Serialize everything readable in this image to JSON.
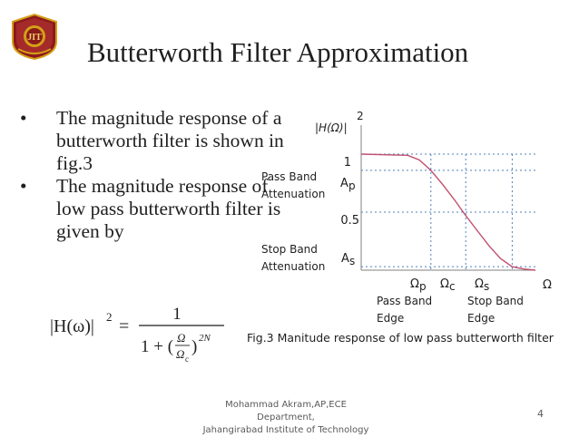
{
  "slide": {
    "title": "Butterworth Filter Approximation",
    "logo_text": "JIT",
    "bullets": [
      {
        "marker": "•",
        "text": "The magnitude response of a butterworth filter is shown in fig.3"
      },
      {
        "marker": "•",
        "text": " The magnitude response of low pass butterworth filter is given by"
      }
    ],
    "formula": {
      "lhs": "|H(ω)|",
      "lhs_exp": "2",
      "equals": "=",
      "numerator": "1",
      "den_one": "1 + (",
      "den_num": "Ω",
      "den_den": "Ω",
      "den_den_sub": "c",
      "den_close": ")",
      "den_exp": "2N"
    },
    "caption": "Fig.3 Manitude response of low pass butterworth filter",
    "footer": {
      "line1": "Mohammad Akram,AP,ECE Department,",
      "line2": "Jahangirabad Institute of Technology"
    },
    "page_number": "4",
    "colors": {
      "curve": "#c0506e",
      "guides": "#4f81bd",
      "axis": "#808080",
      "text": "#1f1f1f",
      "logo_maroon": "#8b1a1a",
      "logo_gold": "#d4a017"
    }
  },
  "chart_data": {
    "type": "line",
    "ylabel": "|H(Ω)|",
    "ylabel_exp": "2",
    "xlabel": "Ω",
    "y_ticks": [
      "1",
      "0.5"
    ],
    "y_markers": [
      {
        "label": "A",
        "sub": "p"
      },
      {
        "label": "A",
        "sub": "s"
      }
    ],
    "x_ticks": [
      {
        "label": "Ω",
        "sub": "p"
      },
      {
        "label": "Ω",
        "sub": "c"
      },
      {
        "label": "Ω",
        "sub": "s"
      }
    ],
    "region_labels": {
      "pass_band_attenuation": [
        "Pass Band",
        "Attenuation"
      ],
      "stop_band_attenuation": [
        "Stop Band",
        "Attenuation"
      ],
      "pass_band_edge": [
        "Pass Band",
        "Edge"
      ],
      "stop_band_edge": [
        "Stop Band",
        "Edge"
      ]
    },
    "series": [
      {
        "x": [
          0,
          0.8,
          1.0,
          1.2,
          1.4,
          1.6,
          1.8,
          2.0,
          2.2,
          2.4,
          2.6,
          2.8,
          3.0
        ],
        "y": [
          1.0,
          0.99,
          0.95,
          0.86,
          0.74,
          0.61,
          0.47,
          0.34,
          0.21,
          0.1,
          0.03,
          0.01,
          0.0
        ]
      }
    ],
    "xlim": [
      0,
      3.0
    ],
    "ylim": [
      0,
      1.25
    ],
    "legend": "none",
    "grid": false
  }
}
